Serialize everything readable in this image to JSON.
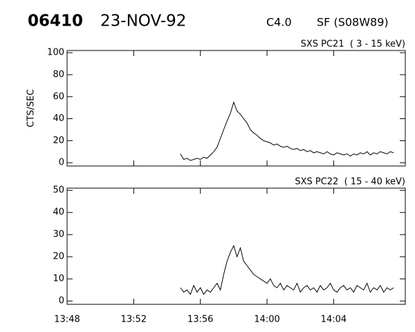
{
  "header": {
    "event": "06410",
    "date": "23-NOV-92",
    "class": "C4.0",
    "flare": "SF (S08W89)"
  },
  "chart_data": [
    {
      "type": "line",
      "title": "SXS PC21  ( 3 - 15 keV)",
      "y_label": "CTS/SEC",
      "x": [
        834.8,
        835,
        835.2,
        835.4,
        835.6,
        835.8,
        836,
        836.2,
        836.4,
        836.6,
        836.8,
        837,
        837.2,
        837.4,
        837.6,
        837.8,
        838,
        838.2,
        838.4,
        838.6,
        838.8,
        839,
        839.2,
        839.4,
        839.6,
        839.8,
        840,
        840.2,
        840.4,
        840.6,
        840.8,
        841,
        841.2,
        841.4,
        841.6,
        841.8,
        842,
        842.2,
        842.4,
        842.6,
        842.8,
        843,
        843.2,
        843.4,
        843.6,
        843.8,
        844,
        844.2,
        844.4,
        844.6,
        844.8,
        845,
        845.2,
        845.4,
        845.6,
        845.8,
        846,
        846.2,
        846.4,
        846.6,
        846.8,
        847,
        847.2,
        847.4,
        847.6
      ],
      "series": [
        {
          "color": "#000000",
          "values": [
            8,
            3,
            4,
            2,
            3,
            4,
            3,
            5,
            4,
            7,
            10,
            14,
            22,
            30,
            38,
            45,
            55,
            47,
            44,
            40,
            36,
            30,
            27,
            25,
            22,
            20,
            19,
            18,
            16,
            17,
            15,
            14,
            15,
            13,
            12,
            13,
            11,
            12,
            10,
            11,
            9,
            10,
            9,
            8,
            10,
            8,
            7,
            9,
            8,
            7,
            8,
            6,
            8,
            7,
            9,
            8,
            10,
            7,
            9,
            8,
            10,
            9,
            8,
            10,
            9
          ]
        }
      ],
      "xlim": [
        828,
        848.3
      ],
      "xticks": [
        828,
        832,
        836,
        840,
        844
      ],
      "ylim": [
        -3,
        102
      ],
      "yticks": [
        0,
        20,
        40,
        60,
        80,
        100
      ]
    },
    {
      "type": "line",
      "title": "SXS PC22  ( 15 - 40 keV)",
      "x": [
        834.8,
        835,
        835.2,
        835.4,
        835.6,
        835.8,
        836,
        836.2,
        836.4,
        836.6,
        836.8,
        837,
        837.2,
        837.4,
        837.6,
        837.8,
        838,
        838.2,
        838.4,
        838.6,
        838.8,
        839,
        839.2,
        839.4,
        839.6,
        839.8,
        840,
        840.2,
        840.4,
        840.6,
        840.8,
        841,
        841.2,
        841.4,
        841.6,
        841.8,
        842,
        842.2,
        842.4,
        842.6,
        842.8,
        843,
        843.2,
        843.4,
        843.6,
        843.8,
        844,
        844.2,
        844.4,
        844.6,
        844.8,
        845,
        845.2,
        845.4,
        845.6,
        845.8,
        846,
        846.2,
        846.4,
        846.6,
        846.8,
        847,
        847.2,
        847.4,
        847.6
      ],
      "series": [
        {
          "color": "#000000",
          "values": [
            6,
            4,
            5,
            3,
            7,
            4,
            6,
            3,
            5,
            4,
            6,
            8,
            5,
            12,
            18,
            22,
            25,
            20,
            24,
            18,
            16,
            14,
            12,
            11,
            10,
            9,
            8,
            10,
            7,
            6,
            8,
            5,
            7,
            6,
            5,
            8,
            4,
            6,
            7,
            5,
            6,
            4,
            7,
            5,
            6,
            8,
            5,
            4,
            6,
            7,
            5,
            6,
            4,
            7,
            6,
            5,
            8,
            4,
            6,
            5,
            7,
            4,
            6,
            5,
            6
          ]
        }
      ],
      "xlim": [
        828,
        848.3
      ],
      "xticks": [
        {
          "value": 828,
          "label": "13:48"
        },
        {
          "value": 832,
          "label": "13:52"
        },
        {
          "value": 836,
          "label": "13:56"
        },
        {
          "value": 840,
          "label": "14:00"
        },
        {
          "value": 844,
          "label": "14:04"
        }
      ],
      "ylim": [
        -1.5,
        51
      ],
      "yticks": [
        0,
        10,
        20,
        30,
        40,
        50
      ]
    }
  ]
}
